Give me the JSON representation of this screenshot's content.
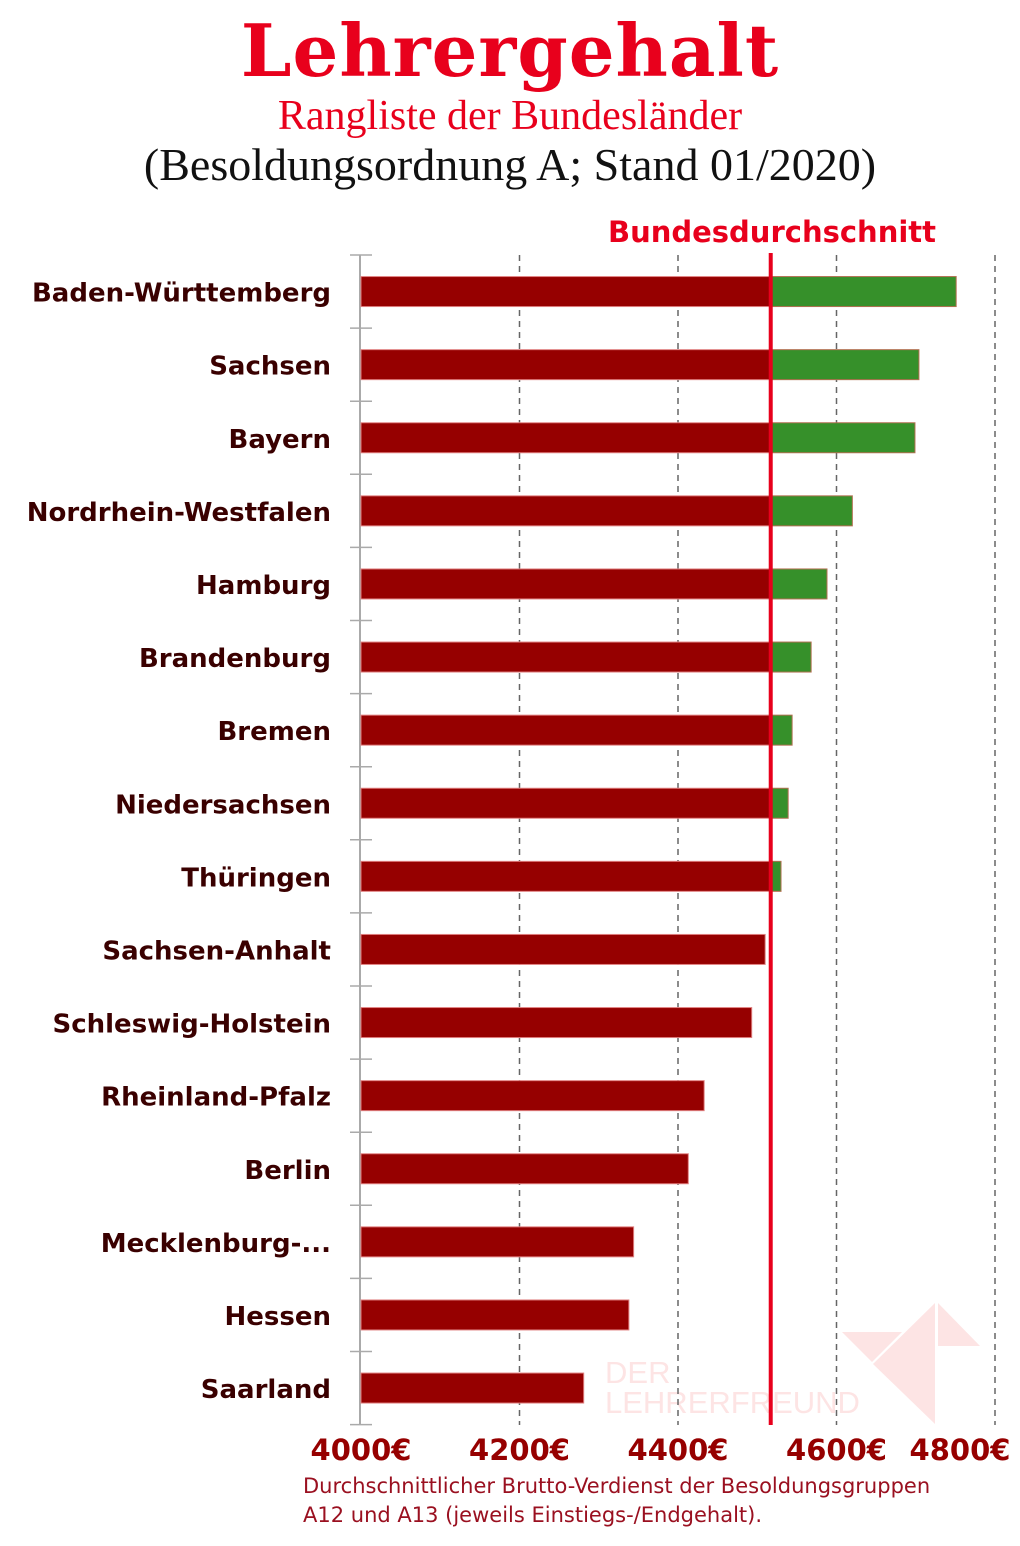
{
  "title": "Lehrergehalt",
  "subtitle": "Rangliste der Bundesländer",
  "subtitle2": "(Besoldungsordnung A; Stand 01/2020)",
  "footnote_line1": "Durchschnittlicher Brutto-Verdienst der Besoldungsgruppen",
  "footnote_line2": "A12 und A13 (jeweils Einstiegs-/Endgehalt).",
  "watermark": "DER LEHRERFREUND",
  "colors": {
    "below_average": "#960000",
    "above_average": "#36902a",
    "average_line": "#e8001c",
    "title": "#e8001c"
  },
  "chart_data": {
    "type": "bar",
    "orientation": "horizontal",
    "categories": [
      "Baden-Württemberg",
      "Sachsen",
      "Bayern",
      "Nordrhein-Westfalen",
      "Hamburg",
      "Brandenburg",
      "Bremen",
      "Niedersachsen",
      "Thüringen",
      "Sachsen-Anhalt",
      "Schleswig-Holstein",
      "Rheinland-Pfalz",
      "Berlin",
      "Mecklenburg-...",
      "Hessen",
      "Saarland"
    ],
    "values": [
      4751,
      4704,
      4699,
      4620,
      4588,
      4568,
      4544,
      4539,
      4530,
      4510,
      4493,
      4433,
      4413,
      4344,
      4338,
      4281
    ],
    "reference_line": {
      "label": "Bundesdurchschnitt",
      "value": 4517
    },
    "xlim": [
      4000,
      4800
    ],
    "xticks": [
      4000,
      4200,
      4400,
      4600,
      4800
    ],
    "xtick_labels": [
      "4000€",
      "4200€",
      "4400€",
      "4600€",
      "4800€"
    ],
    "grid": "vertical dashed"
  }
}
